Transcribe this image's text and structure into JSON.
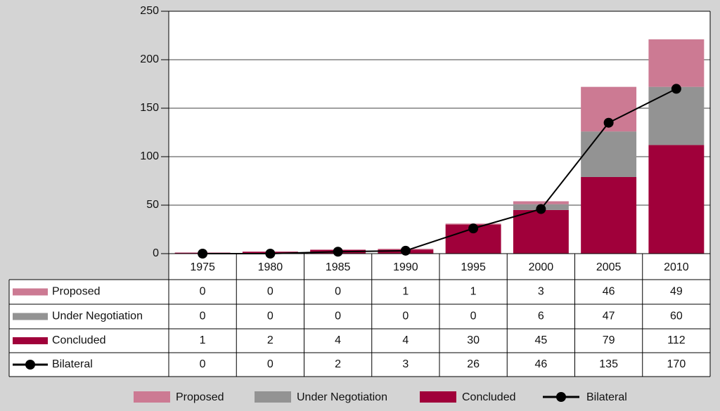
{
  "chart_data": {
    "type": "bar",
    "stacked": true,
    "categories": [
      "1975",
      "1980",
      "1985",
      "1990",
      "1995",
      "2000",
      "2005",
      "2010"
    ],
    "series": [
      {
        "name": "Proposed",
        "type": "bar",
        "color": "#cc7a93",
        "values": [
          0,
          0,
          0,
          1,
          1,
          3,
          46,
          49
        ]
      },
      {
        "name": "Under Negotiation",
        "type": "bar",
        "color": "#939393",
        "values": [
          0,
          0,
          0,
          0,
          0,
          6,
          47,
          60
        ]
      },
      {
        "name": "Concluded",
        "type": "bar",
        "color": "#a0003a",
        "values": [
          1,
          2,
          4,
          4,
          30,
          45,
          79,
          112
        ]
      },
      {
        "name": "Bilateral",
        "type": "line",
        "color": "#000000",
        "values": [
          0,
          0,
          2,
          3,
          26,
          46,
          135,
          170
        ]
      }
    ],
    "ylim": [
      0,
      250
    ],
    "yticks": [
      0,
      50,
      100,
      150,
      200,
      250
    ],
    "grid": true,
    "legend": "bottom"
  }
}
